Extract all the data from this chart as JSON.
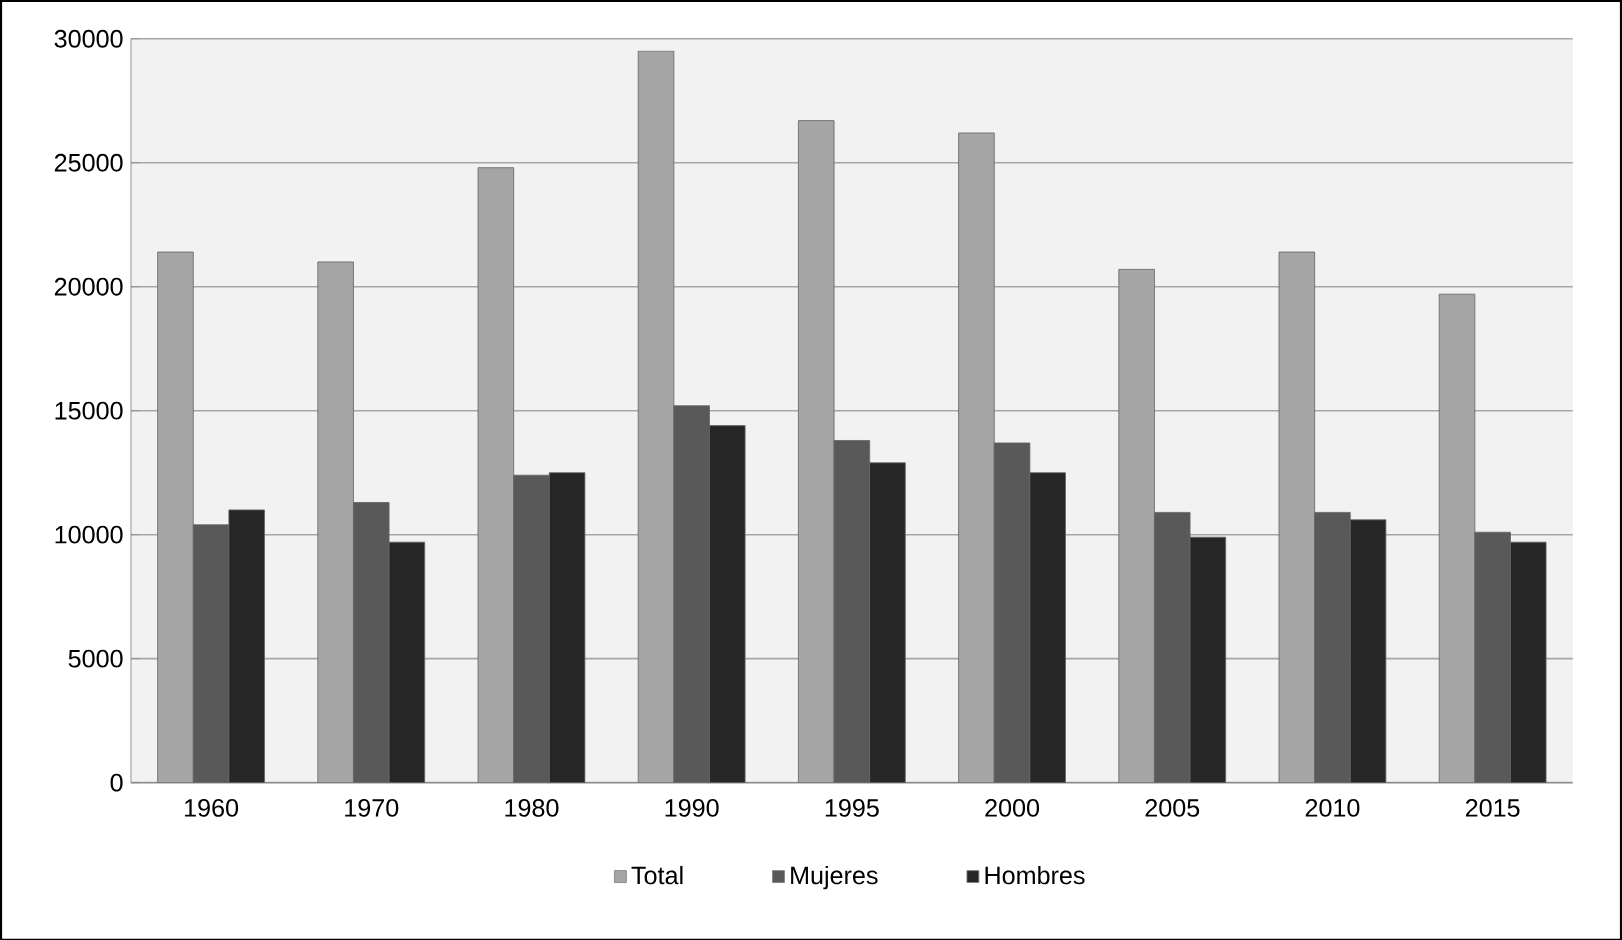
{
  "chart_data": {
    "type": "bar",
    "categories": [
      "1960",
      "1970",
      "1980",
      "1990",
      "1995",
      "2000",
      "2005",
      "2010",
      "2015"
    ],
    "series": [
      {
        "name": "Total",
        "color": "#a6a6a6",
        "values": [
          21400,
          21000,
          24800,
          29500,
          26700,
          26200,
          20700,
          21400,
          19700
        ]
      },
      {
        "name": "Mujeres",
        "color": "#595959",
        "values": [
          10400,
          11300,
          12400,
          15200,
          13800,
          13700,
          10900,
          10900,
          10100
        ]
      },
      {
        "name": "Hombres",
        "color": "#262626",
        "values": [
          11000,
          9700,
          12500,
          14400,
          12900,
          12500,
          9900,
          10600,
          9700
        ]
      }
    ],
    "ylim": [
      0,
      30000
    ],
    "yticks": [
      0,
      5000,
      10000,
      15000,
      20000,
      25000,
      30000
    ],
    "grid": "y",
    "legend": "bottom"
  }
}
